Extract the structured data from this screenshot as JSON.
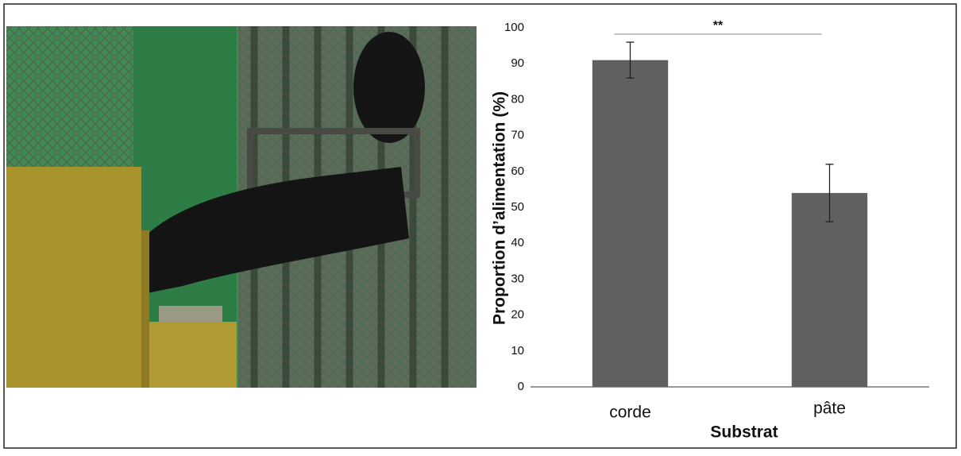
{
  "chart_data": {
    "type": "bar",
    "ylabel": "Proportion d’alimentation (%)",
    "xlabel": "Substrat",
    "categories": [
      "corde",
      "pâte"
    ],
    "values": [
      91,
      54
    ],
    "errors": [
      5,
      8
    ],
    "color": "#606062",
    "ylim": [
      0,
      100
    ],
    "yticks": [
      0,
      10,
      20,
      30,
      40,
      50,
      60,
      70,
      80,
      90,
      100
    ],
    "grid": false,
    "annotation": "**"
  }
}
